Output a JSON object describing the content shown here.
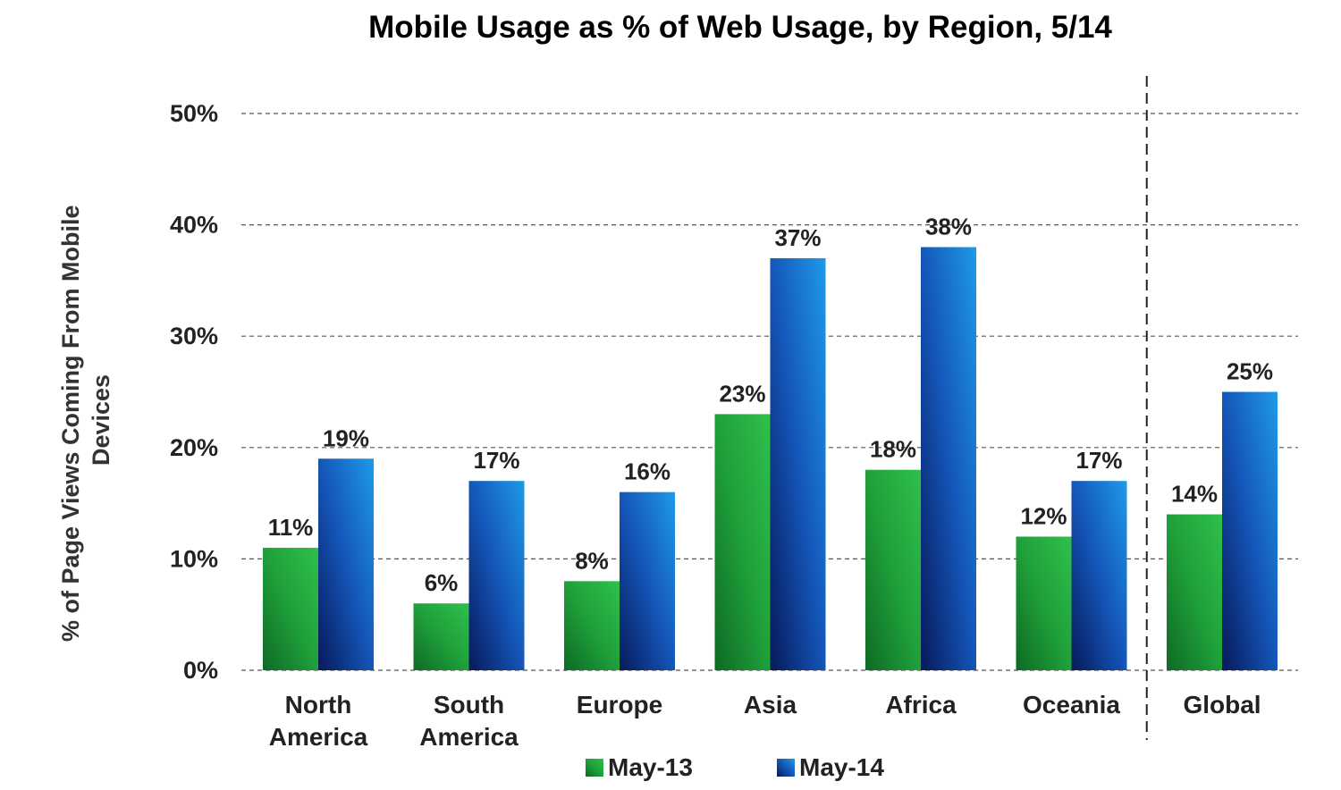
{
  "chart_data": {
    "type": "bar",
    "title": "Mobile Usage as % of Web Usage, by Region, 5/14",
    "ylabel": "% of Page Views Coming From Mobile Devices",
    "ylabel_lines": [
      "% of Page Views Coming From Mobile",
      "Devices"
    ],
    "xlabel": "",
    "ylim": [
      0,
      50
    ],
    "yticks": [
      0,
      10,
      20,
      30,
      40,
      50
    ],
    "ytick_labels": [
      "0%",
      "10%",
      "20%",
      "30%",
      "40%",
      "50%"
    ],
    "grid": true,
    "legend_position": "bottom",
    "categories": [
      "North America",
      "South America",
      "Europe",
      "Asia",
      "Africa",
      "Oceania",
      "Global"
    ],
    "category_lines": [
      [
        "North",
        "America"
      ],
      [
        "South",
        "America"
      ],
      [
        "Europe"
      ],
      [
        "Asia"
      ],
      [
        "Africa"
      ],
      [
        "Oceania"
      ],
      [
        "Global"
      ]
    ],
    "separator_before": "Global",
    "series": [
      {
        "name": "May-13",
        "color": "#22a83a",
        "values": [
          11,
          6,
          8,
          23,
          18,
          12,
          14
        ],
        "labels": [
          "11%",
          "6%",
          "8%",
          "23%",
          "18%",
          "12%",
          "14%"
        ]
      },
      {
        "name": "May-14",
        "color": "#1560c8",
        "values": [
          19,
          17,
          16,
          37,
          38,
          17,
          25
        ],
        "labels": [
          "19%",
          "17%",
          "16%",
          "37%",
          "38%",
          "17%",
          "25%"
        ]
      }
    ]
  }
}
